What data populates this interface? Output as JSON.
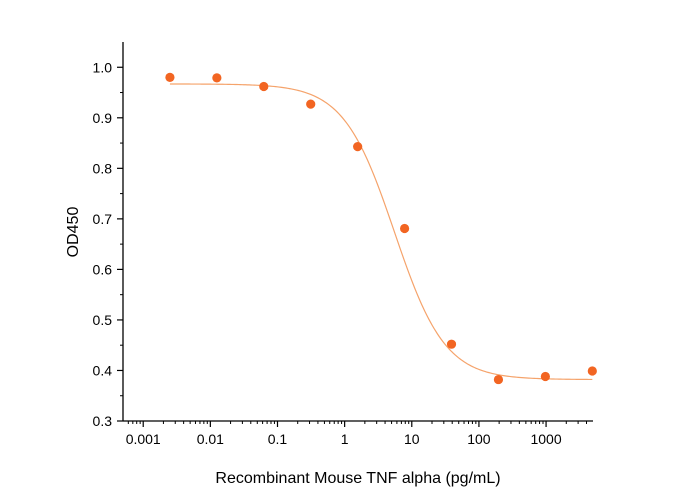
{
  "chart_data": {
    "type": "scatter",
    "title": "",
    "xlabel": "Recombinant Mouse TNF alpha (pg/mL)",
    "ylabel": "OD450",
    "x_scale": "log",
    "xlim": [
      0.0005,
      5000
    ],
    "ylim": [
      0.3,
      1.05
    ],
    "x_ticks": [
      0.001,
      0.01,
      0.1,
      1,
      10,
      100,
      1000
    ],
    "x_tick_labels": [
      "0.001",
      "0.01",
      "0.1",
      "1",
      "10",
      "100",
      "1000"
    ],
    "y_ticks": [
      0.3,
      0.4,
      0.5,
      0.6,
      0.7,
      0.8,
      0.9,
      1.0
    ],
    "y_tick_labels": [
      "0.3",
      "0.4",
      "0.5",
      "0.6",
      "0.7",
      "0.8",
      "0.9",
      "1.0"
    ],
    "grid": false,
    "legend": "none",
    "point_color": "#f26522",
    "curve_color": "#f5a36b",
    "series": [
      {
        "x": [
          0.0025,
          0.0125,
          0.0625,
          0.3125,
          1.5625,
          7.8125,
          39.06,
          195.3,
          976.6,
          4883
        ],
        "y": [
          0.98,
          0.979,
          0.962,
          0.927,
          0.843,
          0.681,
          0.452,
          0.382,
          0.388,
          0.399
        ]
      }
    ],
    "fit_curve": {
      "model": "4PL",
      "top": 0.967,
      "bottom": 0.382,
      "ec50": 5.5,
      "hill": 1.15
    }
  }
}
